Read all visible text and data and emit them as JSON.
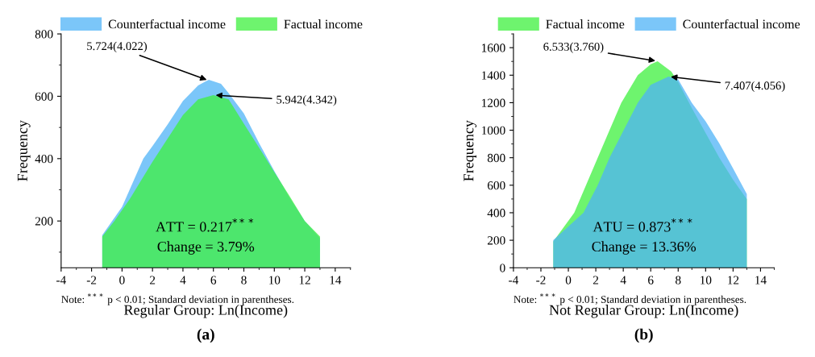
{
  "chart_data": [
    {
      "type": "area",
      "title": "(a)",
      "xlabel": "Regular Group: Ln(Income)",
      "ylabel": "Frequency",
      "xlim": [
        -4,
        15
      ],
      "ylim": [
        50,
        800
      ],
      "xticks": [
        -4,
        -2,
        0,
        2,
        4,
        6,
        8,
        10,
        12,
        14
      ],
      "yticks": [
        200,
        400,
        600,
        800
      ],
      "legend": "top",
      "grid": false,
      "series": [
        {
          "name": "Counterfactual income",
          "color": "#4fb3f7",
          "x": [
            -1.3,
            0,
            1.4,
            2,
            3,
            4,
            5,
            5.7,
            6.5,
            7,
            8,
            9,
            10,
            11,
            12,
            13
          ],
          "values": [
            155,
            245,
            400,
            440,
            510,
            585,
            635,
            653,
            640,
            610,
            545,
            450,
            360,
            275,
            200,
            145
          ]
        },
        {
          "name": "Factual income",
          "color": "#3ef03e",
          "x": [
            -1.3,
            -0.5,
            0.5,
            2,
            3,
            4,
            5,
            6,
            7,
            8,
            9,
            10,
            11,
            12,
            13
          ],
          "values": [
            150,
            200,
            270,
            390,
            465,
            540,
            590,
            604,
            590,
            512,
            435,
            357,
            280,
            200,
            150
          ]
        }
      ],
      "annotations": [
        {
          "text": "5.724(4.022)",
          "x": 5.7,
          "y": 650
        },
        {
          "text": "5.942(4.342)",
          "x": 6.0,
          "y": 604
        },
        "ATT = 0.217$^{***}$",
        "Change = 3.79%",
        "Note: $^{***}$ p < 0.01; Standard deviation in parentheses."
      ]
    },
    {
      "type": "area",
      "title": "(b)",
      "xlabel": "Not Regular Group: Ln(Income)",
      "ylabel": "Frequency",
      "xlim": [
        -4,
        15
      ],
      "ylim": [
        0,
        1700
      ],
      "xticks": [
        -4,
        -2,
        0,
        2,
        4,
        6,
        8,
        10,
        12,
        14
      ],
      "yticks": [
        0,
        200,
        400,
        600,
        800,
        1000,
        1200,
        1400,
        1600
      ],
      "legend": "top",
      "grid": false,
      "series": [
        {
          "name": "Factual income",
          "color": "#3ef03e",
          "x": [
            -1.1,
            0.43,
            2.14,
            3,
            3.86,
            5.06,
            6,
            6.5,
            7.5,
            8,
            9,
            10,
            11,
            12,
            13
          ],
          "values": [
            190,
            400,
            800,
            1000,
            1200,
            1400,
            1480,
            1502,
            1426,
            1350,
            1160,
            980,
            800,
            640,
            500
          ]
        },
        {
          "name": "Counterfactual income",
          "color": "#4fb3f7",
          "x": [
            -1.1,
            1.1,
            2.14,
            3,
            4.03,
            5.06,
            6,
            7.3,
            8,
            9,
            10,
            11,
            12,
            13
          ],
          "values": [
            200,
            400,
            600,
            800,
            1000,
            1200,
            1330,
            1390,
            1370,
            1198,
            1065,
            903,
            722,
            536
          ]
        }
      ],
      "annotations": [
        {
          "text": "6.533(3.760)",
          "x": 6.5,
          "y": 1502
        },
        {
          "text": "7.407(4.056)",
          "x": 7.3,
          "y": 1390
        },
        "ATU = 0.873$^{***}$",
        "Change = 13.36%",
        "Note: $^{***}$ p < 0.01; Standard deviation in parentheses."
      ]
    }
  ]
}
